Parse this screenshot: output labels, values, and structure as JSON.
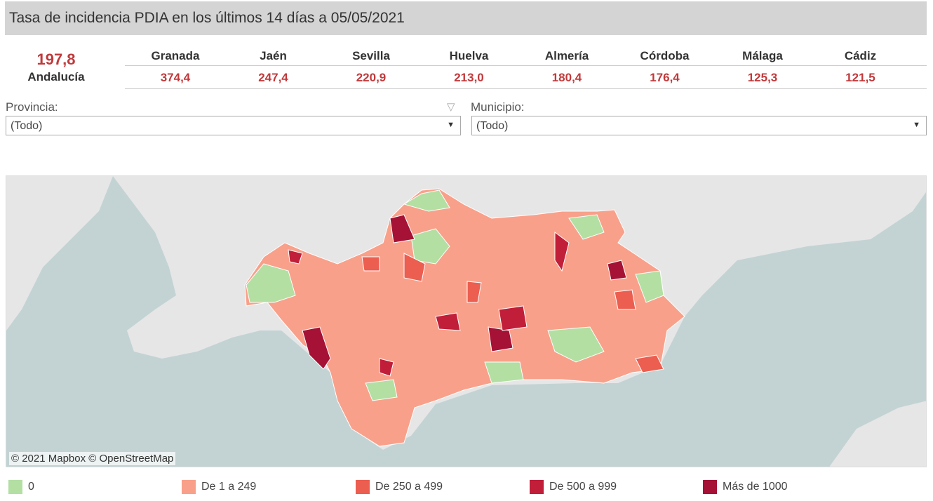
{
  "title": "Tasa de incidencia PDIA en los últimos 14 días a 05/05/2021",
  "summary": {
    "value": "197,8",
    "label": "Andalucía"
  },
  "provinces": [
    {
      "name": "Granada",
      "value": "374,4"
    },
    {
      "name": "Jaén",
      "value": "247,4"
    },
    {
      "name": "Sevilla",
      "value": "220,9"
    },
    {
      "name": "Huelva",
      "value": "213,0"
    },
    {
      "name": "Almería",
      "value": "180,4"
    },
    {
      "name": "Córdoba",
      "value": "176,4"
    },
    {
      "name": "Málaga",
      "value": "125,3"
    },
    {
      "name": "Cádiz",
      "value": "121,5"
    }
  ],
  "filters": {
    "provincia": {
      "label": "Provincia:",
      "value": "(Todo)"
    },
    "municipio": {
      "label": "Municipio:",
      "value": "(Todo)"
    }
  },
  "map": {
    "attribution": "© 2021 Mapbox  © OpenStreetMap"
  },
  "legend": [
    {
      "label": "0",
      "color": "#b3dfa3"
    },
    {
      "label": "De 1 a 249",
      "color": "#f9a08a"
    },
    {
      "label": "De 250 a 499",
      "color": "#ec5e50"
    },
    {
      "label": "De 500 a 999",
      "color": "#c11e3a"
    },
    {
      "label": "Más de 1000",
      "color": "#a51236"
    }
  ]
}
